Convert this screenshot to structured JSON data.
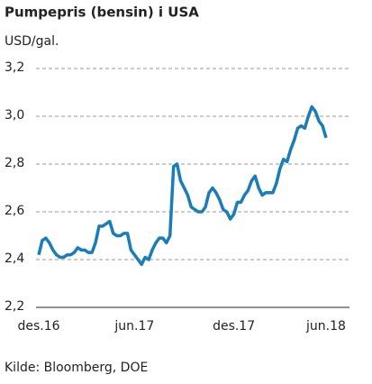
{
  "chart_data": {
    "type": "line",
    "title": "Pumpepris (bensin) i USA",
    "y_label": "USD/gal.",
    "source": "Kilde: Bloomberg, DOE",
    "categories": [
      "des.16",
      null,
      null,
      null,
      null,
      null,
      null,
      null,
      null,
      null,
      null,
      null,
      null,
      null,
      null,
      null,
      null,
      null,
      null,
      null,
      null,
      null,
      null,
      null,
      null,
      null,
      null,
      "jun.17",
      null,
      null,
      null,
      null,
      null,
      null,
      null,
      null,
      null,
      null,
      null,
      null,
      null,
      null,
      null,
      null,
      null,
      null,
      null,
      null,
      null,
      null,
      null,
      null,
      null,
      null,
      null,
      "des.17",
      null,
      null,
      null,
      null,
      null,
      null,
      null,
      null,
      null,
      null,
      null,
      null,
      null,
      null,
      null,
      null,
      null,
      null,
      null,
      null,
      null,
      null,
      null,
      null,
      null,
      "jun.18"
    ],
    "values": [
      2.42,
      2.48,
      2.49,
      2.47,
      2.44,
      2.42,
      2.41,
      2.41,
      2.42,
      2.42,
      2.43,
      2.45,
      2.44,
      2.44,
      2.43,
      2.43,
      2.47,
      2.54,
      2.54,
      2.55,
      2.56,
      2.51,
      2.5,
      2.5,
      2.51,
      2.51,
      2.44,
      2.42,
      2.4,
      2.38,
      2.41,
      2.4,
      2.44,
      2.47,
      2.49,
      2.49,
      2.47,
      2.5,
      2.79,
      2.8,
      2.73,
      2.7,
      2.67,
      2.62,
      2.61,
      2.6,
      2.6,
      2.62,
      2.68,
      2.7,
      2.68,
      2.65,
      2.61,
      2.6,
      2.57,
      2.59,
      2.64,
      2.64,
      2.67,
      2.69,
      2.73,
      2.75,
      2.7,
      2.67,
      2.68,
      2.68,
      2.68,
      2.72,
      2.78,
      2.82,
      2.81,
      2.86,
      2.9,
      2.95,
      2.96,
      2.95,
      3.0,
      3.04,
      3.02,
      2.98,
      2.96,
      2.91
    ],
    "color": "#1a7db8",
    "ylim": [
      2.2,
      3.2
    ],
    "yticks": [
      {
        "value": 2.2,
        "label": "2,2"
      },
      {
        "value": 2.4,
        "label": "2,4"
      },
      {
        "value": 2.6,
        "label": "2,6"
      },
      {
        "value": 2.8,
        "label": "2,8"
      },
      {
        "value": 3.0,
        "label": "3,0"
      },
      {
        "value": 3.2,
        "label": "3,2"
      }
    ],
    "grid": true
  }
}
